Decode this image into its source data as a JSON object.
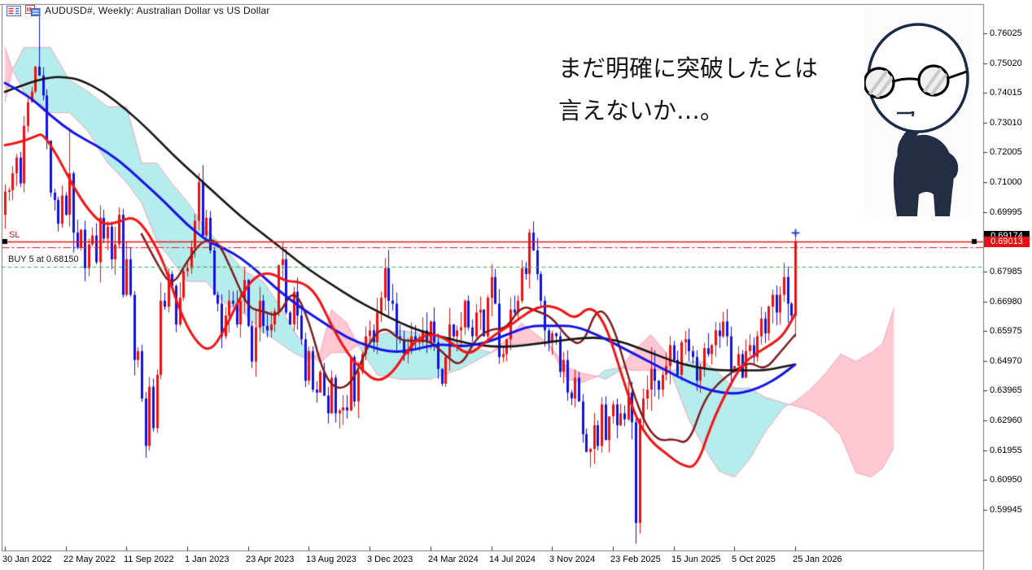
{
  "window": {
    "title": "AUDUSD#, Weekly:  Australian Dollar vs US Dollar"
  },
  "annotation": {
    "line1": "まだ明確に突破したとは",
    "line2": "言えないか…。"
  },
  "orders": {
    "sl_label": "SL",
    "buy_label": "BUY 5 at 0.68150"
  },
  "price_tags": {
    "bid": "0.69174",
    "sl": "0.69013"
  },
  "icons": [
    "market-watch-icon",
    "symbol-chart-icon"
  ],
  "colors": {
    "candle_up": "#e81212",
    "candle_down": "#1212e0",
    "ma_red": "#f01414",
    "ma_blue": "#1414e6",
    "ma_black": "#141414",
    "ma_maroon": "#7d1d1d",
    "cloud_cyan": "#b5ecec",
    "cloud_pink": "#ffc8d2",
    "cloud_edge": "#f2a0b4",
    "sl_line": "#f01414",
    "ask_line": "#f01414",
    "buy_line": "#35b54a",
    "axis": "#7a7a7a",
    "tag_bid_bg": "#000000",
    "tag_sl_bg": "#e81010"
  },
  "chart_data": {
    "type": "candlestick",
    "symbol": "AUDUSD#",
    "timeframe": "Weekly",
    "description": "Australian Dollar vs US Dollar",
    "ylim": [
      0.5855,
      0.771
    ],
    "y_ticks": [
      0.76025,
      0.7502,
      0.74015,
      0.7301,
      0.72005,
      0.71,
      0.69995,
      0.67985,
      0.6698,
      0.65975,
      0.6497,
      0.63965,
      0.6296,
      0.61955,
      0.6095,
      0.59945
    ],
    "x_ticks": [
      {
        "label": "30 Jan 2022",
        "week": 0
      },
      {
        "label": "22 May 2022",
        "week": 16
      },
      {
        "label": "11 Sep 2022",
        "week": 32
      },
      {
        "label": "1 Jan 2023",
        "week": 48
      },
      {
        "label": "23 Apr 2023",
        "week": 64
      },
      {
        "label": "13 Aug 2023",
        "week": 80
      },
      {
        "label": "3 Dec 2023",
        "week": 96
      },
      {
        "label": "24 Mar 2024",
        "week": 112
      },
      {
        "label": "14 Jul 2024",
        "week": 128
      },
      {
        "label": "3 Nov 2024",
        "week": 144
      },
      {
        "label": "23 Feb 2025",
        "week": 160
      },
      {
        "label": "15 Jun 2025",
        "week": 176
      },
      {
        "label": "5 Oct 2025",
        "week": 192
      },
      {
        "label": "25 Jan 2026",
        "week": 208
      }
    ],
    "candles": {
      "first_open": 0.699,
      "closes": [
        0.7068,
        0.7073,
        0.713,
        0.7183,
        0.7096,
        0.729,
        0.737,
        0.7406,
        0.749,
        0.746,
        0.7393,
        0.724,
        0.7065,
        0.704,
        0.696,
        0.7055,
        0.699,
        0.713,
        0.693,
        0.688,
        0.694,
        0.681,
        0.689,
        0.692,
        0.683,
        0.698,
        0.691,
        0.695,
        0.684,
        0.689,
        0.699,
        0.672,
        0.684,
        0.672,
        0.65,
        0.653,
        0.637,
        0.621,
        0.641,
        0.627,
        0.645,
        0.67,
        0.668,
        0.679,
        0.675,
        0.662,
        0.671,
        0.68,
        0.681,
        0.688,
        0.697,
        0.71,
        0.692,
        0.698,
        0.687,
        0.672,
        0.669,
        0.658,
        0.665,
        0.67,
        0.669,
        0.662,
        0.67,
        0.677,
        0.6615,
        0.6495,
        0.661,
        0.67,
        0.6615,
        0.66,
        0.662,
        0.6665,
        0.682,
        0.684,
        0.666,
        0.662,
        0.673,
        0.665,
        0.657,
        0.643,
        0.653,
        0.64,
        0.639,
        0.646,
        0.638,
        0.632,
        0.644,
        0.632,
        0.633,
        0.634,
        0.633,
        0.651,
        0.636,
        0.646,
        0.652,
        0.658,
        0.66,
        0.656,
        0.666,
        0.671,
        0.681,
        0.67,
        0.669,
        0.658,
        0.657,
        0.652,
        0.653,
        0.658,
        0.656,
        0.656,
        0.66,
        0.656,
        0.663,
        0.656,
        0.647,
        0.642,
        0.651,
        0.662,
        0.658,
        0.66,
        0.661,
        0.67,
        0.661,
        0.658,
        0.666,
        0.667,
        0.658,
        0.671,
        0.678,
        0.669,
        0.651,
        0.652,
        0.657,
        0.667,
        0.666,
        0.67,
        0.681,
        0.679,
        0.693,
        0.687,
        0.679,
        0.67,
        0.66,
        0.656,
        0.659,
        0.658,
        0.646,
        0.65,
        0.639,
        0.637,
        0.644,
        0.636,
        0.625,
        0.619,
        0.62,
        0.628,
        0.621,
        0.635,
        0.623,
        0.631,
        0.635,
        0.628,
        0.632,
        0.63,
        0.639,
        0.629,
        0.595,
        0.63,
        0.637,
        0.64,
        0.647,
        0.643,
        0.64,
        0.645,
        0.648,
        0.655,
        0.65,
        0.645,
        0.656,
        0.657,
        0.653,
        0.651,
        0.643,
        0.647,
        0.654,
        0.652,
        0.655,
        0.66,
        0.658,
        0.663,
        0.658,
        0.646,
        0.648,
        0.652,
        0.644,
        0.653,
        0.655,
        0.651,
        0.658,
        0.664,
        0.659,
        0.668,
        0.672,
        0.666,
        0.672,
        0.678,
        0.669,
        0.665,
        0.6901
      ],
      "extremes": {
        "9": {
          "h": 0.7661
        },
        "17": {
          "h": 0.7283
        },
        "37": {
          "l": 0.617
        },
        "52": {
          "h": 0.7158
        },
        "101": {
          "h": 0.6871
        },
        "138": {
          "h": 0.6942
        },
        "166": {
          "l": 0.588
        },
        "208": {
          "h": 0.6917,
          "l": 0.66
        }
      }
    },
    "overlays": {
      "ichimoku_cloud": [
        [
          0,
          0.7555,
          0.737
        ],
        [
          2,
          0.748,
          0.748
        ],
        [
          5,
          0.7405,
          0.7555
        ],
        [
          12,
          0.7335,
          0.7555
        ],
        [
          17,
          0.7335,
          0.7445
        ],
        [
          22,
          0.727,
          0.7405
        ],
        [
          27,
          0.7165,
          0.7355
        ],
        [
          32,
          0.71,
          0.7355
        ],
        [
          36,
          0.703,
          0.7165
        ],
        [
          40,
          0.69,
          0.7165
        ],
        [
          44,
          0.6835,
          0.7095
        ],
        [
          48,
          0.6765,
          0.7035
        ],
        [
          53,
          0.6765,
          0.694
        ],
        [
          58,
          0.669,
          0.6875
        ],
        [
          63,
          0.6655,
          0.68
        ],
        [
          68,
          0.6595,
          0.6765
        ],
        [
          72,
          0.656,
          0.669
        ],
        [
          76,
          0.6525,
          0.66
        ],
        [
          80,
          0.65,
          0.6525
        ],
        [
          83,
          0.6525,
          0.649
        ],
        [
          86,
          0.667,
          0.6525
        ],
        [
          90,
          0.6625,
          0.6525
        ],
        [
          93,
          0.655,
          0.655
        ],
        [
          98,
          0.645,
          0.6585
        ],
        [
          104,
          0.6435,
          0.66
        ],
        [
          112,
          0.6435,
          0.6585
        ],
        [
          120,
          0.647,
          0.6555
        ],
        [
          128,
          0.6525,
          0.6525
        ],
        [
          132,
          0.657,
          0.655
        ],
        [
          136,
          0.6625,
          0.6555
        ],
        [
          140,
          0.6585,
          0.6555
        ],
        [
          143,
          0.6555,
          0.6555
        ],
        [
          148,
          0.6475,
          0.6435
        ],
        [
          152,
          0.6455,
          0.6425
        ],
        [
          156,
          0.6445,
          0.6445
        ],
        [
          158,
          0.6435,
          0.6465
        ],
        [
          162,
          0.6465,
          0.6475
        ],
        [
          165,
          0.6525,
          0.6465
        ],
        [
          170,
          0.6585,
          0.6465
        ],
        [
          174,
          0.6525,
          0.6465
        ],
        [
          176,
          0.6435,
          0.6465
        ],
        [
          180,
          0.63,
          0.6495
        ],
        [
          184,
          0.6205,
          0.6495
        ],
        [
          188,
          0.6125,
          0.6455
        ],
        [
          192,
          0.6105,
          0.6405
        ],
        [
          196,
          0.6165,
          0.6405
        ],
        [
          200,
          0.6255,
          0.6375
        ],
        [
          205,
          0.634,
          0.6355
        ],
        [
          208,
          0.636,
          0.6345
        ],
        [
          212,
          0.64,
          0.633
        ],
        [
          216,
          0.6455,
          0.63
        ],
        [
          220,
          0.652,
          0.6245
        ],
        [
          224,
          0.6495,
          0.612
        ],
        [
          228,
          0.6525,
          0.6105
        ],
        [
          231,
          0.6555,
          0.6135
        ],
        [
          234,
          0.6675,
          0.6205
        ]
      ],
      "ma_red": [
        [
          0,
          0.7225
        ],
        [
          4,
          0.7235
        ],
        [
          8,
          0.7255
        ],
        [
          10,
          0.7265
        ],
        [
          14,
          0.7185
        ],
        [
          18,
          0.7085
        ],
        [
          22,
          0.7005
        ],
        [
          26,
          0.6955
        ],
        [
          30,
          0.6966
        ],
        [
          34,
          0.6986
        ],
        [
          38,
          0.6925
        ],
        [
          42,
          0.6825
        ],
        [
          46,
          0.6665
        ],
        [
          50,
          0.6565
        ],
        [
          54,
          0.6525
        ],
        [
          58,
          0.6605
        ],
        [
          62,
          0.6715
        ],
        [
          66,
          0.6785
        ],
        [
          70,
          0.6795
        ],
        [
          74,
          0.6765
        ],
        [
          78,
          0.6765
        ],
        [
          82,
          0.6725
        ],
        [
          86,
          0.6615
        ],
        [
          90,
          0.6525
        ],
        [
          94,
          0.6465
        ],
        [
          98,
          0.6425
        ],
        [
          102,
          0.6455
        ],
        [
          106,
          0.6535
        ],
        [
          110,
          0.6585
        ],
        [
          114,
          0.6585
        ],
        [
          118,
          0.6555
        ],
        [
          122,
          0.6515
        ],
        [
          126,
          0.6555
        ],
        [
          130,
          0.6595
        ],
        [
          134,
          0.6625
        ],
        [
          138,
          0.6665
        ],
        [
          142,
          0.6685
        ],
        [
          146,
          0.6675
        ],
        [
          150,
          0.6635
        ],
        [
          154,
          0.6685
        ],
        [
          158,
          0.6625
        ],
        [
          162,
          0.6465
        ],
        [
          166,
          0.6305
        ],
        [
          170,
          0.6225
        ],
        [
          174,
          0.6185
        ],
        [
          178,
          0.6145
        ],
        [
          182,
          0.6135
        ],
        [
          186,
          0.6285
        ],
        [
          190,
          0.6395
        ],
        [
          194,
          0.6485
        ],
        [
          198,
          0.6525
        ],
        [
          202,
          0.6555
        ],
        [
          205,
          0.6585
        ],
        [
          208,
          0.6655
        ]
      ],
      "ma_blue": [
        [
          0,
          0.7435
        ],
        [
          6,
          0.7395
        ],
        [
          12,
          0.7325
        ],
        [
          18,
          0.7265
        ],
        [
          24,
          0.7225
        ],
        [
          30,
          0.7175
        ],
        [
          36,
          0.7105
        ],
        [
          42,
          0.7035
        ],
        [
          48,
          0.6955
        ],
        [
          54,
          0.6895
        ],
        [
          58,
          0.6875
        ],
        [
          62,
          0.6845
        ],
        [
          66,
          0.6805
        ],
        [
          72,
          0.6735
        ],
        [
          78,
          0.6675
        ],
        [
          84,
          0.6625
        ],
        [
          90,
          0.6575
        ],
        [
          96,
          0.6545
        ],
        [
          102,
          0.6525
        ],
        [
          108,
          0.6535
        ],
        [
          114,
          0.6555
        ],
        [
          120,
          0.6545
        ],
        [
          126,
          0.6555
        ],
        [
          132,
          0.6585
        ],
        [
          138,
          0.6615
        ],
        [
          144,
          0.6615
        ],
        [
          150,
          0.6615
        ],
        [
          156,
          0.6585
        ],
        [
          162,
          0.6545
        ],
        [
          168,
          0.6505
        ],
        [
          174,
          0.6465
        ],
        [
          180,
          0.6425
        ],
        [
          186,
          0.6395
        ],
        [
          192,
          0.6385
        ],
        [
          196,
          0.6395
        ],
        [
          200,
          0.6415
        ],
        [
          204,
          0.6445
        ],
        [
          208,
          0.6485
        ]
      ],
      "ma_black": [
        [
          0,
          0.7405
        ],
        [
          6,
          0.7435
        ],
        [
          12,
          0.7455
        ],
        [
          16,
          0.7455
        ],
        [
          20,
          0.7445
        ],
        [
          26,
          0.7405
        ],
        [
          32,
          0.7345
        ],
        [
          38,
          0.7275
        ],
        [
          44,
          0.7195
        ],
        [
          50,
          0.7125
        ],
        [
          56,
          0.7055
        ],
        [
          62,
          0.6985
        ],
        [
          68,
          0.6925
        ],
        [
          74,
          0.6865
        ],
        [
          80,
          0.6805
        ],
        [
          86,
          0.6755
        ],
        [
          92,
          0.6705
        ],
        [
          98,
          0.6665
        ],
        [
          104,
          0.6625
        ],
        [
          110,
          0.6595
        ],
        [
          116,
          0.6575
        ],
        [
          122,
          0.6555
        ],
        [
          128,
          0.6545
        ],
        [
          134,
          0.6545
        ],
        [
          140,
          0.6555
        ],
        [
          146,
          0.6565
        ],
        [
          152,
          0.6575
        ],
        [
          158,
          0.6575
        ],
        [
          164,
          0.6555
        ],
        [
          170,
          0.6525
        ],
        [
          176,
          0.6495
        ],
        [
          182,
          0.6475
        ],
        [
          188,
          0.6465
        ],
        [
          194,
          0.6465
        ],
        [
          200,
          0.6465
        ],
        [
          204,
          0.6475
        ],
        [
          208,
          0.6485
        ]
      ],
      "ma_maroon": [
        [
          36,
          0.6925
        ],
        [
          40,
          0.6825
        ],
        [
          44,
          0.6745
        ],
        [
          48,
          0.6835
        ],
        [
          52,
          0.6905
        ],
        [
          56,
          0.6905
        ],
        [
          60,
          0.6795
        ],
        [
          64,
          0.6675
        ],
        [
          68,
          0.6665
        ],
        [
          72,
          0.6645
        ],
        [
          76,
          0.6745
        ],
        [
          80,
          0.6635
        ],
        [
          84,
          0.6445
        ],
        [
          88,
          0.6395
        ],
        [
          92,
          0.6435
        ],
        [
          96,
          0.6565
        ],
        [
          100,
          0.6615
        ],
        [
          104,
          0.6565
        ],
        [
          108,
          0.6565
        ],
        [
          112,
          0.6565
        ],
        [
          116,
          0.6515
        ],
        [
          120,
          0.6475
        ],
        [
          124,
          0.6575
        ],
        [
          128,
          0.6605
        ],
        [
          132,
          0.6605
        ],
        [
          136,
          0.6685
        ],
        [
          140,
          0.6665
        ],
        [
          144,
          0.6645
        ],
        [
          148,
          0.6575
        ],
        [
          152,
          0.6545
        ],
        [
          156,
          0.6685
        ],
        [
          160,
          0.6625
        ],
        [
          164,
          0.6445
        ],
        [
          168,
          0.6295
        ],
        [
          172,
          0.6225
        ],
        [
          176,
          0.6235
        ],
        [
          180,
          0.6215
        ],
        [
          184,
          0.6365
        ],
        [
          188,
          0.6425
        ],
        [
          192,
          0.6465
        ],
        [
          196,
          0.6495
        ],
        [
          200,
          0.6465
        ],
        [
          204,
          0.6525
        ],
        [
          208,
          0.6585
        ]
      ]
    },
    "hlines": [
      {
        "price": 0.69013,
        "style": "solid",
        "color": "#f01414",
        "label": "SL"
      },
      {
        "price": 0.6882,
        "style": "dashdot",
        "color": "#f01414",
        "label": ""
      },
      {
        "price": 0.6815,
        "style": "dashed",
        "color": "#35b54a",
        "label": "BUY 5 at 0.68150"
      }
    ],
    "markers": [
      {
        "type": "up-arrow-cross",
        "week": 208,
        "price": 0.693,
        "color": "#2a3bd8"
      }
    ]
  }
}
